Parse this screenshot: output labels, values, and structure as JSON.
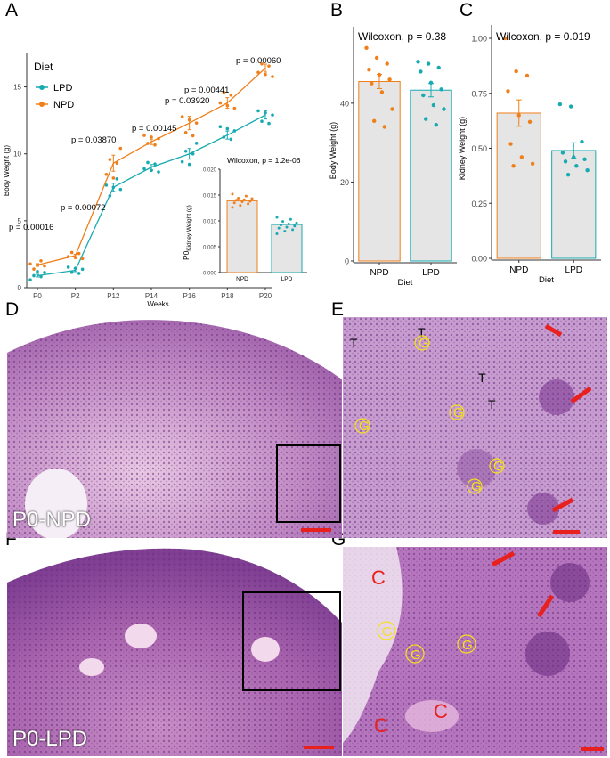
{
  "panels": {
    "A": "A",
    "B": "B",
    "C": "C",
    "D": "D",
    "E": "E",
    "F": "F",
    "G": "G"
  },
  "image_labels": {
    "npd": "P0-NPD",
    "lpd": "P0-LPD"
  },
  "annotations": {
    "E": [
      "T",
      "T",
      "T",
      "T",
      "G",
      "G",
      "G",
      "G",
      "G"
    ],
    "G": [
      "C",
      "C",
      "C",
      "G",
      "G",
      "G"
    ]
  },
  "colors": {
    "LPD": "#17aab0",
    "NPD": "#f07f1a",
    "bar_fill": "#e5e5e5",
    "scale_bar": "#e8201e",
    "annotation_G": "#f5e21b",
    "annotation_C": "#e8201e",
    "annotation_T": "#000000"
  },
  "chart_data": [
    {
      "type": "line",
      "ylabel": "Body Weight (g)",
      "xlabel": "Weeks",
      "legend_title": "Diet",
      "legend_position": "top-left",
      "categories": [
        "P0",
        "P2",
        "P12",
        "P14",
        "P16",
        "P18",
        "P20"
      ],
      "ylim": [
        0,
        17.5
      ],
      "yticks": [
        "0",
        "5",
        "10",
        "15"
      ],
      "series": [
        {
          "name": "LPD",
          "color": "#17aab0",
          "values": [
            0.9,
            1.3,
            7.5,
            9.0,
            10.0,
            11.4,
            12.9
          ],
          "errors": [
            0.1,
            0.1,
            0.3,
            0.2,
            0.4,
            0.3,
            0.3
          ]
        },
        {
          "name": "NPD",
          "color": "#f07f1a",
          "values": [
            1.7,
            2.4,
            9.3,
            10.9,
            12.3,
            13.8,
            16.4
          ],
          "errors": [
            0.1,
            0.1,
            0.6,
            0.2,
            0.5,
            0.4,
            0.3
          ]
        }
      ],
      "pvalues": [
        "p = 0.00016",
        "p = 0.00072",
        "p = 0.03870",
        "p = 0.00145",
        "p = 0.03920",
        "p = 0.00441",
        "p = 0.00060"
      ],
      "inset": {
        "type": "bar",
        "title": "Wilcoxon, p = 1.2e-06",
        "ylabel_prefix": "P0",
        "ylabel": "Kidney Weight (g)",
        "categories": [
          "NPD",
          "LPD"
        ],
        "values": [
          0.0139,
          0.0093
        ],
        "ylim": [
          0,
          0.02
        ],
        "yticks": [
          "0.000",
          "0.005",
          "0.010",
          "0.015",
          "0.020"
        ],
        "points": {
          "NPD": [
            0.0126,
            0.013,
            0.0133,
            0.0135,
            0.0137,
            0.0138,
            0.014,
            0.0141,
            0.0143,
            0.0144,
            0.0148,
            0.0152
          ],
          "LPD": [
            0.0075,
            0.008,
            0.0083,
            0.0086,
            0.0088,
            0.009,
            0.0092,
            0.0094,
            0.0096,
            0.0099,
            0.0103,
            0.0107
          ]
        }
      }
    },
    {
      "type": "bar",
      "title": "Wilcoxon, p = 0.38",
      "xlabel": "Diet",
      "ylabel": "Body Weight (g)",
      "categories": [
        "NPD",
        "LPD"
      ],
      "values": [
        45.5,
        43.3
      ],
      "errors": [
        1.8,
        1.7
      ],
      "ylim": [
        0,
        56
      ],
      "yticks": [
        "0",
        "20",
        "40"
      ],
      "points": {
        "NPD": [
          54.0,
          51.5,
          50.0,
          48.5,
          47.2,
          46.0,
          45.0,
          42.8,
          38.5,
          35.5,
          34.0
        ],
        "LPD": [
          50.5,
          50.0,
          49.0,
          48.0,
          45.2,
          43.5,
          42.0,
          39.5,
          38.5,
          36.0,
          34.5
        ]
      }
    },
    {
      "type": "bar",
      "title": "Wilcoxon, p = 0.019",
      "xlabel": "Diet",
      "ylabel": "Kidney Weight (g)",
      "categories": [
        "NPD",
        "LPD"
      ],
      "values": [
        0.66,
        0.49
      ],
      "errors": [
        0.06,
        0.035
      ],
      "ylim": [
        0,
        1.0
      ],
      "yticks": [
        "0.00",
        "0.25",
        "0.50",
        "0.75",
        "1.00"
      ],
      "points": {
        "NPD": [
          1.0,
          0.85,
          0.83,
          0.76,
          0.65,
          0.62,
          0.52,
          0.46,
          0.43,
          0.42
        ],
        "LPD": [
          0.7,
          0.69,
          0.53,
          0.48,
          0.46,
          0.45,
          0.44,
          0.42,
          0.4,
          0.38
        ]
      }
    }
  ]
}
